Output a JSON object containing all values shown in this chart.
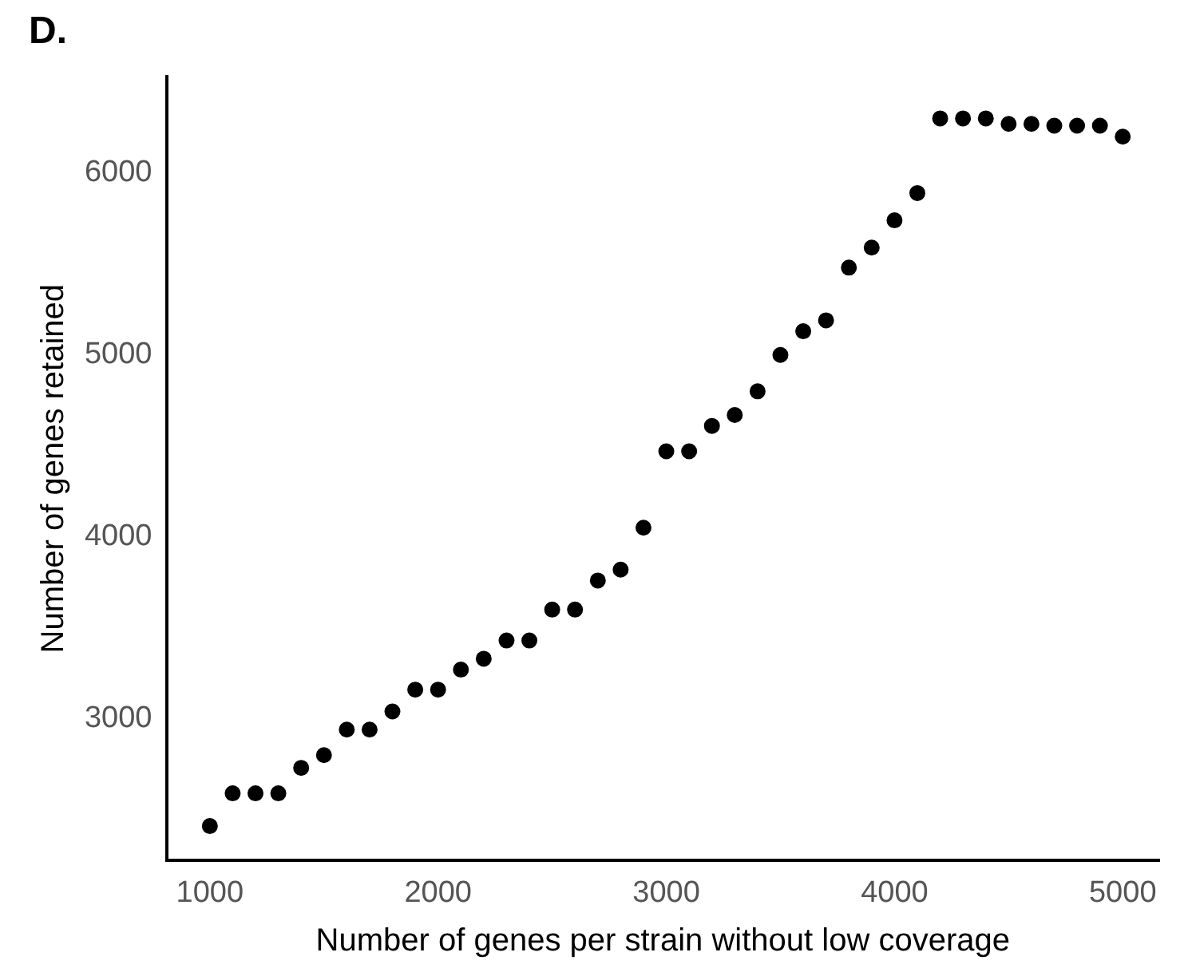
{
  "chart_data": {
    "type": "scatter",
    "title": "D.",
    "xlabel": "Number of genes per strain without low coverage",
    "ylabel": "Number of genes retained",
    "x": [
      1000,
      1100,
      1200,
      1300,
      1400,
      1500,
      1600,
      1700,
      1800,
      1900,
      2000,
      2100,
      2200,
      2300,
      2400,
      2500,
      2600,
      2700,
      2800,
      2900,
      3000,
      3100,
      3200,
      3300,
      3400,
      3500,
      3600,
      3700,
      3800,
      3900,
      4000,
      4100,
      4200,
      4300,
      4400,
      4500,
      4600,
      4700,
      4800,
      4900,
      5000
    ],
    "series": [
      {
        "color": "#000000",
        "values": [
          2410,
          2590,
          2590,
          2590,
          2730,
          2800,
          2940,
          2940,
          3040,
          3160,
          3160,
          3270,
          3330,
          3430,
          3430,
          3600,
          3600,
          3760,
          3820,
          4050,
          4470,
          4470,
          4610,
          4670,
          4800,
          5000,
          5130,
          5190,
          5480,
          5590,
          5740,
          5890,
          6300,
          6300,
          6300,
          6270,
          6270,
          6260,
          6260,
          6260,
          6200
        ]
      }
    ],
    "xlim": [
      810,
      5160
    ],
    "xticks": [
      1000,
      2000,
      3000,
      4000,
      5000
    ],
    "ylim": [
      2220,
      6530
    ],
    "yticks": [
      3000,
      4000,
      5000,
      6000
    ],
    "grid": false,
    "legend": false,
    "marker": "circle"
  }
}
